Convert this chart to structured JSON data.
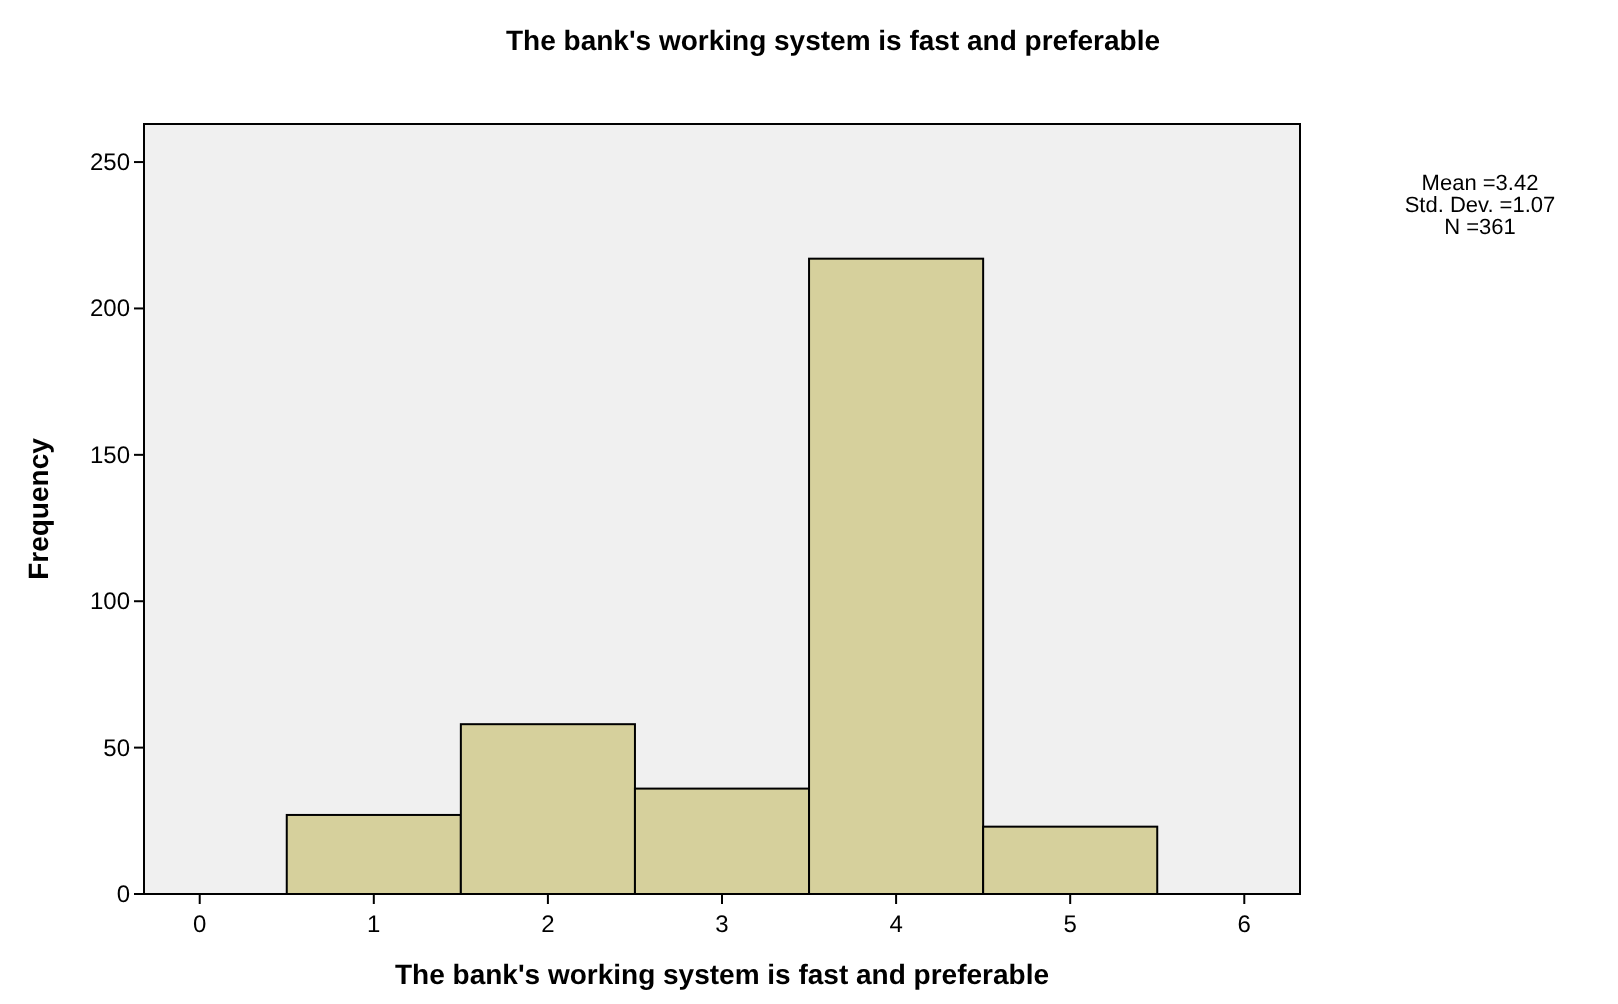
{
  "chart_data": {
    "type": "histogram",
    "title": "The bank's working system is fast and preferable",
    "xlabel": "The bank's working system is fast and preferable",
    "ylabel": "Frequency",
    "bins": [
      0.5,
      1.5,
      2.5,
      3.5,
      4.5,
      5.5
    ],
    "values": [
      27,
      58,
      36,
      217,
      23
    ],
    "color": "#d6d09c",
    "xlim": [
      -0.32,
      6.32
    ],
    "xticks": [
      0,
      1,
      2,
      3,
      4,
      5,
      6
    ],
    "ylim": [
      0,
      263
    ],
    "yticks": [
      0,
      50,
      100,
      150,
      200,
      250
    ],
    "grid": false,
    "annotations": [
      "Mean =3.42",
      "Std. Dev. =1.07",
      "N =361"
    ]
  }
}
